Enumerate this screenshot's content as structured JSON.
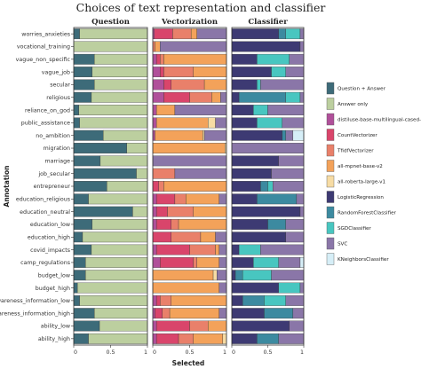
{
  "chart_data": {
    "type": "bar",
    "stacked": true,
    "orientation": "horizontal",
    "title": "Choices of text representation and classifier",
    "xlabel": "Selected",
    "ylabel": "Annotation",
    "xlim": [
      0,
      1
    ],
    "xticks": [
      "0",
      "0.5",
      "1"
    ],
    "grid": false,
    "legend_position": "right",
    "categories": [
      "worries_anxieties",
      "vocational_training",
      "vague_non_specific",
      "vague_job",
      "secular",
      "religious",
      "reliance_on_god",
      "public_assistance",
      "no_ambition",
      "migration",
      "marriage",
      "job_secular",
      "entrepreneur",
      "education_religious",
      "education_neutral",
      "education_low",
      "education_high",
      "covid_impacts",
      "camp_regulations",
      "budget_low",
      "budget_high",
      "awareness_information_low",
      "awareness_information_high",
      "ability_low",
      "ability_high"
    ],
    "legend": [
      {
        "name": "Question + Answer",
        "color": "#3d6b79"
      },
      {
        "name": "Answer only",
        "color": "#bccf9f"
      },
      {
        "name": "distiluse-base-multilingual-cased-v2",
        "color": "#b0509a"
      },
      {
        "name": "CountVectorizer",
        "color": "#d9456b"
      },
      {
        "name": "TfidfVectorizer",
        "color": "#e9806a"
      },
      {
        "name": "all-mpnet-base-v2",
        "color": "#f3a25a"
      },
      {
        "name": "all-roberta-large-v1",
        "color": "#f7dca4"
      },
      {
        "name": "LogisticRegression",
        "color": "#3d3a73"
      },
      {
        "name": "RandomForestClassifier",
        "color": "#3c8aa0"
      },
      {
        "name": "SGDClassifier",
        "color": "#48c6c0"
      },
      {
        "name": "SVC",
        "color": "#8a76a8"
      },
      {
        "name": "KNeighborsClassifier",
        "color": "#d6eef7"
      }
    ],
    "facets": [
      {
        "title": "Question",
        "series": [
          {
            "name": "Question + Answer",
            "values": [
              0.08,
              0.0,
              0.28,
              0.25,
              0.28,
              0.24,
              0.07,
              0.08,
              0.4,
              0.72,
              0.36,
              0.85,
              0.45,
              0.2,
              0.8,
              0.25,
              0.12,
              0.24,
              0.16,
              0.16,
              0.05,
              0.08,
              0.28,
              0.35,
              0.2
            ]
          },
          {
            "name": "Answer only",
            "values": [
              0.92,
              1.0,
              0.72,
              0.75,
              0.72,
              0.76,
              0.93,
              0.92,
              0.6,
              0.28,
              0.64,
              0.15,
              0.55,
              0.8,
              0.2,
              0.75,
              0.88,
              0.76,
              0.84,
              0.84,
              0.95,
              0.92,
              0.72,
              0.65,
              0.8
            ]
          }
        ]
      },
      {
        "title": "Vectorization",
        "series": [
          {
            "name": "distiluse-base-multilingual-cased-v2",
            "values": [
              0.02,
              0.0,
              0.05,
              0.1,
              0.15,
              0.15,
              0.05,
              0.05,
              0.03,
              0.0,
              0.0,
              0.0,
              0.0,
              0.05,
              0.05,
              0.05,
              0.0,
              0.05,
              0.1,
              0.0,
              0.0,
              0.05,
              0.03,
              0.05,
              0.05
            ]
          },
          {
            "name": "CountVectorizer",
            "values": [
              0.25,
              0.0,
              0.05,
              0.05,
              0.1,
              0.35,
              0.0,
              0.0,
              0.0,
              0.0,
              0.0,
              0.0,
              0.08,
              0.25,
              0.15,
              0.2,
              0.25,
              0.45,
              0.45,
              0.0,
              0.0,
              0.05,
              0.1,
              0.45,
              0.3
            ]
          },
          {
            "name": "TfidfVectorizer",
            "values": [
              0.25,
              0.03,
              0.05,
              0.4,
              0.45,
              0.3,
              0.0,
              0.0,
              0.0,
              0.0,
              0.0,
              0.3,
              0.07,
              0.15,
              0.35,
              0.1,
              0.4,
              0.35,
              0.05,
              0.0,
              0.0,
              0.15,
              0.1,
              0.25,
              0.2
            ]
          },
          {
            "name": "all-mpnet-base-v2",
            "values": [
              0.08,
              0.07,
              0.85,
              0.45,
              0.3,
              0.12,
              0.25,
              0.7,
              0.65,
              0.98,
              0.0,
              0.0,
              0.85,
              0.45,
              0.45,
              0.65,
              0.2,
              0.05,
              0.3,
              0.82,
              0.9,
              0.75,
              0.67,
              0.25,
              0.4
            ]
          },
          {
            "name": "all-roberta-large-v1",
            "values": [
              0.0,
              0.0,
              0.0,
              0.0,
              0.0,
              0.0,
              0.0,
              0.1,
              0.02,
              0.02,
              0.0,
              0.0,
              0.0,
              0.0,
              0.0,
              0.0,
              0.0,
              0.0,
              0.0,
              0.05,
              0.0,
              0.0,
              0.0,
              0.0,
              0.05
            ]
          },
          {
            "name": "SVC",
            "values": [
              0.4,
              0.9,
              0.0,
              0.0,
              0.0,
              0.08,
              0.7,
              0.15,
              0.3,
              0.0,
              1.0,
              0.7,
              0.0,
              0.1,
              0.0,
              0.0,
              0.15,
              0.1,
              0.1,
              0.13,
              0.1,
              0.0,
              0.1,
              0.0,
              0.0
            ]
          }
        ]
      },
      {
        "title": "Classifier",
        "series": [
          {
            "name": "LogisticRegression",
            "values": [
              0.65,
              0.95,
              0.35,
              0.55,
              0.35,
              0.1,
              0.3,
              0.35,
              0.7,
              0.0,
              0.65,
              0.55,
              0.4,
              0.35,
              0.95,
              0.5,
              0.75,
              0.1,
              0.3,
              0.05,
              0.65,
              0.15,
              0.45,
              0.8,
              0.35
            ]
          },
          {
            "name": "RandomForestClassifier",
            "values": [
              0.1,
              0.0,
              0.0,
              0.0,
              0.0,
              0.65,
              0.0,
              0.0,
              0.05,
              0.0,
              0.0,
              0.0,
              0.1,
              0.55,
              0.0,
              0.25,
              0.0,
              0.0,
              0.0,
              0.1,
              0.0,
              0.3,
              0.4,
              0.0,
              0.3
            ]
          },
          {
            "name": "SGDClassifier",
            "values": [
              0.2,
              0.0,
              0.45,
              0.2,
              0.05,
              0.2,
              0.2,
              0.35,
              0.0,
              0.0,
              0.0,
              0.0,
              0.07,
              0.0,
              0.0,
              0.0,
              0.0,
              0.3,
              0.35,
              0.4,
              0.3,
              0.3,
              0.0,
              0.0,
              0.0
            ]
          },
          {
            "name": "SVC",
            "values": [
              0.05,
              0.05,
              0.2,
              0.25,
              0.6,
              0.05,
              0.5,
              0.3,
              0.1,
              1.0,
              0.35,
              0.45,
              0.43,
              0.1,
              0.05,
              0.25,
              0.25,
              0.6,
              0.3,
              0.45,
              0.05,
              0.25,
              0.15,
              0.2,
              0.35
            ]
          },
          {
            "name": "KNeighborsClassifier",
            "values": [
              0.0,
              0.0,
              0.0,
              0.0,
              0.0,
              0.0,
              0.0,
              0.0,
              0.15,
              0.0,
              0.0,
              0.0,
              0.0,
              0.0,
              0.0,
              0.0,
              0.0,
              0.0,
              0.05,
              0.0,
              0.0,
              0.0,
              0.0,
              0.0,
              0.0
            ]
          }
        ]
      }
    ]
  }
}
